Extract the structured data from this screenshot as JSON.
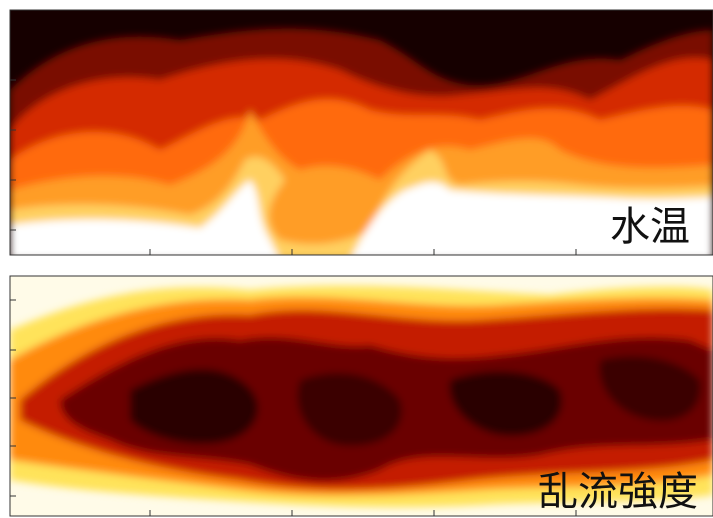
{
  "panels": [
    {
      "label": "水温"
    },
    {
      "label": "乱流強度"
    }
  ]
}
